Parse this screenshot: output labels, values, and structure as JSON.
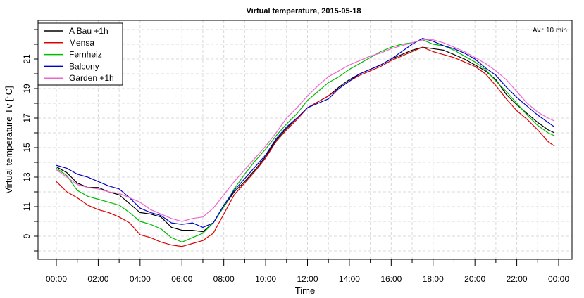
{
  "chart_data": {
    "type": "line",
    "title": "Virtual temperature, 2015-05-18",
    "xlabel": "Time",
    "ylabel": "Virtual temperature Tv [°C]",
    "note": "Av.: 10 min",
    "xlim": [
      0,
      24
    ],
    "ylim": [
      7.6,
      23.9
    ],
    "grid": true,
    "legend_position": "top-left",
    "x_ticks": [
      "00:00",
      "02:00",
      "04:00",
      "06:00",
      "08:00",
      "10:00",
      "12:00",
      "14:00",
      "16:00",
      "18:00",
      "20:00",
      "22:00",
      "00:00"
    ],
    "y_ticks": [
      "9",
      "11",
      "13",
      "15",
      "17",
      "19",
      "21"
    ],
    "series": [
      {
        "name": "A Bau +1h",
        "color": "#000000",
        "points": [
          [
            0.0,
            13.7
          ],
          [
            0.5,
            13.3
          ],
          [
            1.0,
            12.6
          ],
          [
            1.5,
            12.3
          ],
          [
            2.0,
            12.3
          ],
          [
            2.5,
            12.0
          ],
          [
            3.0,
            11.8
          ],
          [
            3.5,
            11.2
          ],
          [
            4.0,
            10.6
          ],
          [
            4.5,
            10.5
          ],
          [
            5.0,
            10.3
          ],
          [
            5.5,
            9.6
          ],
          [
            6.0,
            9.4
          ],
          [
            6.5,
            9.4
          ],
          [
            7.0,
            9.3
          ],
          [
            7.5,
            9.9
          ],
          [
            8.0,
            11.0
          ],
          [
            8.5,
            12.0
          ],
          [
            9.0,
            12.7
          ],
          [
            9.5,
            13.5
          ],
          [
            10.0,
            14.4
          ],
          [
            10.5,
            15.5
          ],
          [
            11.0,
            16.3
          ],
          [
            11.5,
            17.0
          ],
          [
            12.0,
            17.7
          ],
          [
            12.5,
            18.1
          ],
          [
            13.0,
            18.5
          ],
          [
            13.5,
            19.1
          ],
          [
            14.0,
            19.6
          ],
          [
            14.5,
            20.0
          ],
          [
            15.0,
            20.3
          ],
          [
            15.5,
            20.6
          ],
          [
            16.0,
            21.0
          ],
          [
            16.5,
            21.3
          ],
          [
            17.0,
            21.6
          ],
          [
            17.5,
            21.8
          ],
          [
            18.0,
            21.7
          ],
          [
            18.5,
            21.6
          ],
          [
            19.0,
            21.3
          ],
          [
            19.5,
            21.0
          ],
          [
            20.0,
            20.6
          ],
          [
            20.5,
            20.2
          ],
          [
            21.0,
            19.6
          ],
          [
            21.5,
            18.6
          ],
          [
            22.0,
            17.9
          ],
          [
            22.5,
            17.3
          ],
          [
            23.0,
            16.7
          ],
          [
            23.5,
            16.2
          ],
          [
            23.8,
            16.0
          ]
        ]
      },
      {
        "name": "Mensa",
        "color": "#dd0000",
        "points": [
          [
            0.0,
            12.7
          ],
          [
            0.5,
            12.0
          ],
          [
            1.0,
            11.6
          ],
          [
            1.5,
            11.1
          ],
          [
            2.0,
            10.8
          ],
          [
            2.5,
            10.6
          ],
          [
            3.0,
            10.3
          ],
          [
            3.5,
            9.9
          ],
          [
            4.0,
            9.1
          ],
          [
            4.5,
            8.9
          ],
          [
            5.0,
            8.6
          ],
          [
            5.5,
            8.4
          ],
          [
            6.0,
            8.3
          ],
          [
            6.5,
            8.5
          ],
          [
            7.0,
            8.7
          ],
          [
            7.5,
            9.2
          ],
          [
            8.0,
            10.5
          ],
          [
            8.5,
            11.8
          ],
          [
            9.0,
            12.6
          ],
          [
            9.5,
            13.4
          ],
          [
            10.0,
            14.3
          ],
          [
            10.5,
            15.4
          ],
          [
            11.0,
            16.2
          ],
          [
            11.5,
            16.9
          ],
          [
            12.0,
            17.7
          ],
          [
            12.5,
            18.1
          ],
          [
            13.0,
            18.5
          ],
          [
            13.5,
            19.0
          ],
          [
            14.0,
            19.5
          ],
          [
            14.5,
            19.9
          ],
          [
            15.0,
            20.2
          ],
          [
            15.5,
            20.5
          ],
          [
            16.0,
            20.9
          ],
          [
            16.5,
            21.2
          ],
          [
            17.0,
            21.5
          ],
          [
            17.5,
            21.8
          ],
          [
            18.0,
            21.5
          ],
          [
            18.5,
            21.3
          ],
          [
            19.0,
            21.1
          ],
          [
            19.5,
            20.8
          ],
          [
            20.0,
            20.5
          ],
          [
            20.5,
            20.0
          ],
          [
            21.0,
            19.2
          ],
          [
            21.5,
            18.3
          ],
          [
            22.0,
            17.5
          ],
          [
            22.5,
            16.9
          ],
          [
            23.0,
            16.2
          ],
          [
            23.5,
            15.4
          ],
          [
            23.8,
            15.1
          ]
        ]
      },
      {
        "name": "Fernheiz",
        "color": "#00bb00",
        "points": [
          [
            0.0,
            13.6
          ],
          [
            0.5,
            13.1
          ],
          [
            1.0,
            12.1
          ],
          [
            1.5,
            11.7
          ],
          [
            2.0,
            11.5
          ],
          [
            2.5,
            11.3
          ],
          [
            3.0,
            11.1
          ],
          [
            3.5,
            10.6
          ],
          [
            4.0,
            10.0
          ],
          [
            4.5,
            9.8
          ],
          [
            5.0,
            9.5
          ],
          [
            5.5,
            8.9
          ],
          [
            6.0,
            8.6
          ],
          [
            6.5,
            8.9
          ],
          [
            7.0,
            9.2
          ],
          [
            7.5,
            9.9
          ],
          [
            8.0,
            11.0
          ],
          [
            8.5,
            12.2
          ],
          [
            9.0,
            13.2
          ],
          [
            9.5,
            14.1
          ],
          [
            10.0,
            14.9
          ],
          [
            10.5,
            15.8
          ],
          [
            11.0,
            16.6
          ],
          [
            11.5,
            17.3
          ],
          [
            12.0,
            18.2
          ],
          [
            12.5,
            18.8
          ],
          [
            13.0,
            19.4
          ],
          [
            13.5,
            19.8
          ],
          [
            14.0,
            20.3
          ],
          [
            14.5,
            20.7
          ],
          [
            15.0,
            21.1
          ],
          [
            15.5,
            21.5
          ],
          [
            16.0,
            21.8
          ],
          [
            16.5,
            22.0
          ],
          [
            17.0,
            22.1
          ],
          [
            17.5,
            22.3
          ],
          [
            18.0,
            22.0
          ],
          [
            18.5,
            21.9
          ],
          [
            19.0,
            21.6
          ],
          [
            19.5,
            21.2
          ],
          [
            20.0,
            20.8
          ],
          [
            20.5,
            20.3
          ],
          [
            21.0,
            19.5
          ],
          [
            21.5,
            18.8
          ],
          [
            22.0,
            18.0
          ],
          [
            22.5,
            17.2
          ],
          [
            23.0,
            16.5
          ],
          [
            23.5,
            16.0
          ],
          [
            23.8,
            15.8
          ]
        ]
      },
      {
        "name": "Balcony",
        "color": "#0000cc",
        "points": [
          [
            0.0,
            13.8
          ],
          [
            0.5,
            13.6
          ],
          [
            1.0,
            13.2
          ],
          [
            1.5,
            13.0
          ],
          [
            2.0,
            12.7
          ],
          [
            2.5,
            12.4
          ],
          [
            3.0,
            12.2
          ],
          [
            3.5,
            11.6
          ],
          [
            4.0,
            10.9
          ],
          [
            4.5,
            10.6
          ],
          [
            5.0,
            10.4
          ],
          [
            5.5,
            9.9
          ],
          [
            6.0,
            9.8
          ],
          [
            6.5,
            9.9
          ],
          [
            7.0,
            9.6
          ],
          [
            7.5,
            9.9
          ],
          [
            8.0,
            11.1
          ],
          [
            8.5,
            12.1
          ],
          [
            9.0,
            12.9
          ],
          [
            9.5,
            13.7
          ],
          [
            10.0,
            14.5
          ],
          [
            10.5,
            15.6
          ],
          [
            11.0,
            16.4
          ],
          [
            11.5,
            17.0
          ],
          [
            12.0,
            17.7
          ],
          [
            12.5,
            18.0
          ],
          [
            13.0,
            18.3
          ],
          [
            13.5,
            19.0
          ],
          [
            14.0,
            19.5
          ],
          [
            14.5,
            20.0
          ],
          [
            15.0,
            20.3
          ],
          [
            15.5,
            20.6
          ],
          [
            16.0,
            21.0
          ],
          [
            16.5,
            21.5
          ],
          [
            17.0,
            22.0
          ],
          [
            17.5,
            22.4
          ],
          [
            18.0,
            22.2
          ],
          [
            18.5,
            21.9
          ],
          [
            19.0,
            21.7
          ],
          [
            19.5,
            21.4
          ],
          [
            20.0,
            21.0
          ],
          [
            20.5,
            20.4
          ],
          [
            21.0,
            19.9
          ],
          [
            21.5,
            19.1
          ],
          [
            22.0,
            18.4
          ],
          [
            22.5,
            17.8
          ],
          [
            23.0,
            17.2
          ],
          [
            23.5,
            16.7
          ],
          [
            23.8,
            16.4
          ]
        ]
      },
      {
        "name": "Garden +1h",
        "color": "#ee66cc",
        "points": [
          [
            0.0,
            13.5
          ],
          [
            0.5,
            13.0
          ],
          [
            1.0,
            12.5
          ],
          [
            1.5,
            12.3
          ],
          [
            2.0,
            12.2
          ],
          [
            2.5,
            12.0
          ],
          [
            3.0,
            11.9
          ],
          [
            3.5,
            11.6
          ],
          [
            4.0,
            11.3
          ],
          [
            4.5,
            10.8
          ],
          [
            5.0,
            10.5
          ],
          [
            5.5,
            10.2
          ],
          [
            6.0,
            10.0
          ],
          [
            6.5,
            10.2
          ],
          [
            7.0,
            10.3
          ],
          [
            7.5,
            10.9
          ],
          [
            8.0,
            11.8
          ],
          [
            8.5,
            12.7
          ],
          [
            9.0,
            13.5
          ],
          [
            9.5,
            14.3
          ],
          [
            10.0,
            15.1
          ],
          [
            10.5,
            16.0
          ],
          [
            11.0,
            17.0
          ],
          [
            11.5,
            17.7
          ],
          [
            12.0,
            18.5
          ],
          [
            12.5,
            19.2
          ],
          [
            13.0,
            19.8
          ],
          [
            13.5,
            20.2
          ],
          [
            14.0,
            20.6
          ],
          [
            14.5,
            20.9
          ],
          [
            15.0,
            21.2
          ],
          [
            15.5,
            21.4
          ],
          [
            16.0,
            21.7
          ],
          [
            16.5,
            21.9
          ],
          [
            17.0,
            22.1
          ],
          [
            17.5,
            22.3
          ],
          [
            18.0,
            22.3
          ],
          [
            18.5,
            22.1
          ],
          [
            19.0,
            21.8
          ],
          [
            19.5,
            21.5
          ],
          [
            20.0,
            21.1
          ],
          [
            20.5,
            20.7
          ],
          [
            21.0,
            20.2
          ],
          [
            21.5,
            19.6
          ],
          [
            22.0,
            18.8
          ],
          [
            22.5,
            18.0
          ],
          [
            23.0,
            17.4
          ],
          [
            23.5,
            17.0
          ],
          [
            23.8,
            16.8
          ]
        ]
      }
    ]
  }
}
